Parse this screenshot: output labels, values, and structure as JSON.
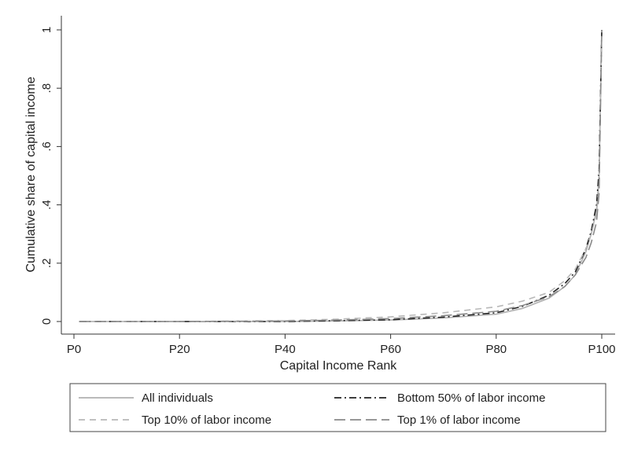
{
  "chart_data": {
    "type": "line",
    "title": "",
    "xlabel": "Capital Income Rank",
    "ylabel": "Cumulative share of capital income",
    "xlim": [
      0,
      100
    ],
    "ylim": [
      0,
      1
    ],
    "x_ticks": [
      0,
      20,
      40,
      60,
      80,
      100
    ],
    "x_tick_labels": [
      "P0",
      "P20",
      "P40",
      "P60",
      "P80",
      "P100"
    ],
    "y_ticks": [
      0,
      0.2,
      0.4,
      0.6,
      0.8,
      1
    ],
    "y_tick_labels": [
      "0",
      ".2",
      ".4",
      ".6",
      ".8",
      "1"
    ],
    "grid": false,
    "legend_position": "bottom",
    "x": [
      1,
      20,
      40,
      50,
      60,
      70,
      80,
      85,
      90,
      93,
      95,
      97,
      98,
      99,
      99.5,
      100
    ],
    "series": [
      {
        "name": "All individuals",
        "color": "#b0b0b0",
        "dash": "solid",
        "values": [
          0,
          0,
          0,
          0.002,
          0.005,
          0.012,
          0.025,
          0.045,
          0.08,
          0.12,
          0.16,
          0.24,
          0.3,
          0.38,
          0.5,
          1
        ]
      },
      {
        "name": "Bottom 50% of labor income",
        "color": "#222222",
        "dash": "dashdot",
        "values": [
          0,
          0,
          0,
          0.003,
          0.006,
          0.015,
          0.03,
          0.052,
          0.09,
          0.13,
          0.17,
          0.25,
          0.31,
          0.4,
          0.52,
          1
        ]
      },
      {
        "name": "Top 10% of labor income",
        "color": "#b8b8b8",
        "dash": "dashed",
        "values": [
          0,
          0,
          0.003,
          0.008,
          0.016,
          0.03,
          0.05,
          0.07,
          0.1,
          0.14,
          0.18,
          0.25,
          0.3,
          0.37,
          0.47,
          1
        ]
      },
      {
        "name": "Top 1% of labor income",
        "color": "#8a8a8a",
        "dash": "longdash",
        "values": [
          0,
          0,
          0.002,
          0.005,
          0.01,
          0.02,
          0.035,
          0.055,
          0.085,
          0.12,
          0.16,
          0.22,
          0.27,
          0.34,
          0.44,
          1
        ]
      }
    ]
  }
}
